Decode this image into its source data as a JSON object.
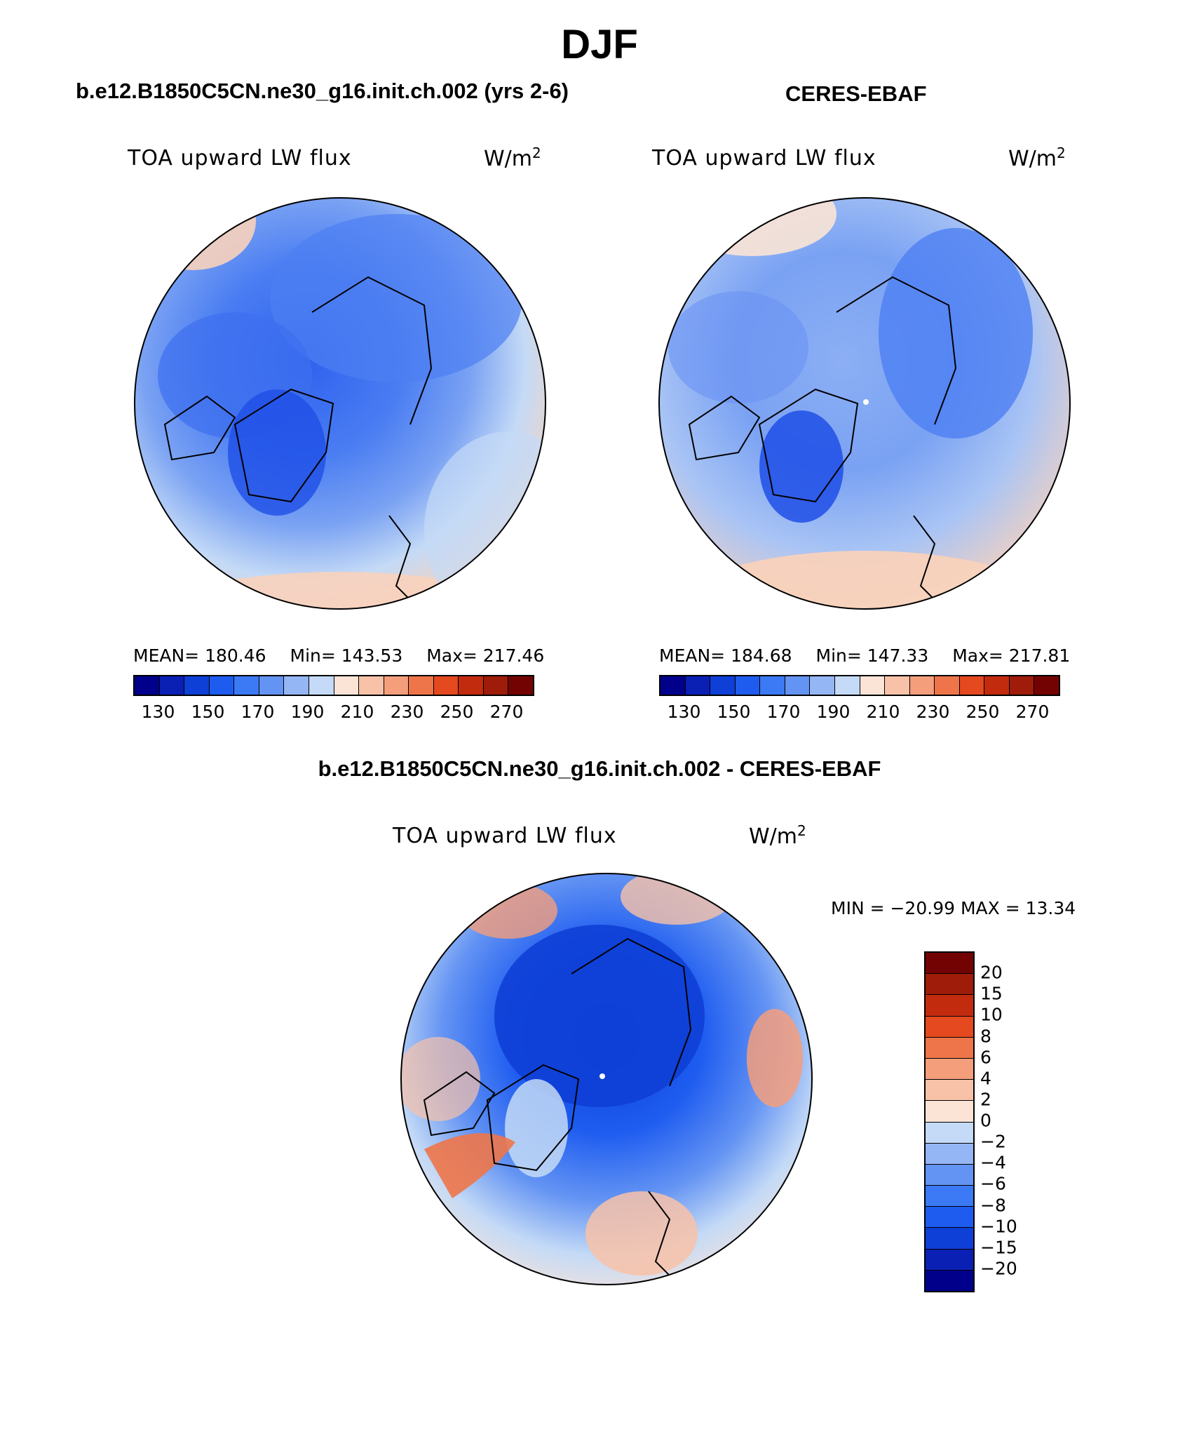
{
  "figure": {
    "title": "DJF",
    "panels": [
      {
        "title": "b.e12.B1850C5CN.ne30_g16.init.ch.002 (yrs 2-6)",
        "variable": "TOA upward LW flux",
        "units": "W/m",
        "units_exp": "2",
        "mean_label": "MEAN= 180.46",
        "min_label": "Min= 143.53",
        "max_label": "Max= 217.46"
      },
      {
        "title": "CERES-EBAF",
        "variable": "TOA upward LW flux",
        "units": "W/m",
        "units_exp": "2",
        "mean_label": "MEAN= 184.68",
        "min_label": "Min= 147.33",
        "max_label": "Max= 217.81"
      },
      {
        "title": "b.e12.B1850C5CN.ne30_g16.init.ch.002 - CERES-EBAF",
        "variable": "TOA upward LW flux",
        "units": "W/m",
        "units_exp": "2",
        "minmax_label": "MIN = −20.99 MAX =   13.34"
      }
    ]
  },
  "chart_data": [
    {
      "type": "heatmap",
      "projection": "north polar stereographic",
      "title": "b.e12.B1850C5CN.ne30_g16.init.ch.002 (yrs 2-6)",
      "variable": "TOA upward LW flux",
      "units": "W/m2",
      "mean": 180.46,
      "min": 143.53,
      "max": 217.46,
      "colorbar_ticks": [
        "130",
        "150",
        "170",
        "190",
        "210",
        "230",
        "250",
        "270"
      ]
    },
    {
      "type": "heatmap",
      "projection": "north polar stereographic",
      "title": "CERES-EBAF",
      "variable": "TOA upward LW flux",
      "units": "W/m2",
      "mean": 184.68,
      "min": 147.33,
      "max": 217.81,
      "colorbar_ticks": [
        "130",
        "150",
        "170",
        "190",
        "210",
        "230",
        "250",
        "270"
      ]
    },
    {
      "type": "heatmap",
      "projection": "north polar stereographic",
      "title": "b.e12.B1850C5CN.ne30_g16.init.ch.002 - CERES-EBAF",
      "variable": "TOA upward LW flux",
      "units": "W/m2",
      "min": -20.99,
      "max": 13.34,
      "colorbar_ticks": [
        "20",
        "15",
        "10",
        "8",
        "6",
        "4",
        "2",
        "0",
        "−2",
        "−4",
        "−6",
        "−8",
        "−10",
        "−15",
        "−20"
      ]
    }
  ],
  "colors": {
    "abs_scale": [
      "#00008b",
      "#0a1fb4",
      "#0e3fd6",
      "#1e5cf0",
      "#3b79f5",
      "#6494f3",
      "#94b6f4",
      "#c4daf6",
      "#fbe4d6",
      "#f8c2a8",
      "#f49e7c",
      "#ee7549",
      "#e4491f",
      "#c32b0f",
      "#9e1c09",
      "#730303"
    ],
    "diff_scale": [
      "#730303",
      "#9e1c09",
      "#c32b0f",
      "#e4491f",
      "#ee7549",
      "#f49e7c",
      "#f8c2a8",
      "#fbe4d6",
      "#c4daf6",
      "#94b6f4",
      "#6494f3",
      "#3b79f5",
      "#1e5cf0",
      "#0e3fd6",
      "#0a1fb4",
      "#00008b"
    ],
    "map_ocean_warm": "#f8d2bc",
    "map_mid": "#a9c4f5",
    "map_cold": "#3b6ef0",
    "map_coldest": "#1b44e0"
  }
}
